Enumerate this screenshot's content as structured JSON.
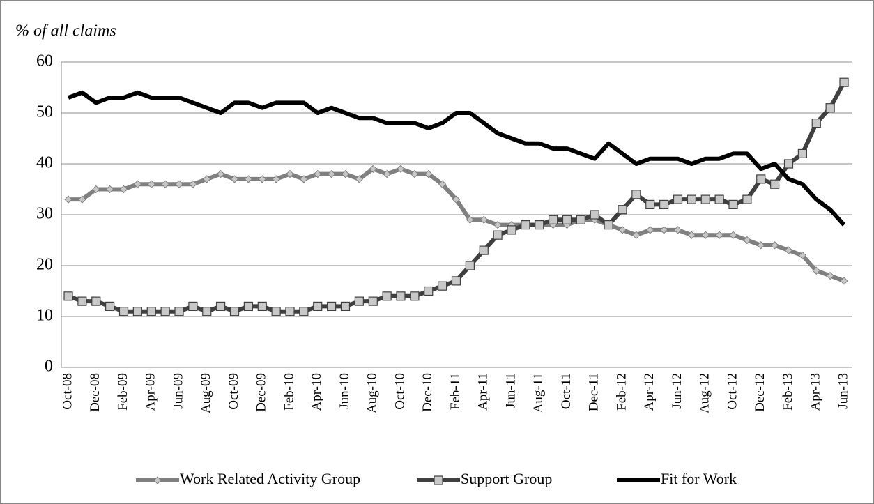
{
  "chart_data": {
    "type": "line",
    "title": "% of all claims",
    "categories": [
      "Oct-08",
      null,
      "Dec-08",
      null,
      "Feb-09",
      null,
      "Apr-09",
      null,
      "Jun-09",
      null,
      "Aug-09",
      null,
      "Oct-09",
      null,
      "Dec-09",
      null,
      "Feb-10",
      null,
      "Apr-10",
      null,
      "Jun-10",
      null,
      "Aug-10",
      null,
      "Oct-10",
      null,
      "Dec-10",
      null,
      "Feb-11",
      null,
      "Apr-11",
      null,
      "Jun-11",
      null,
      "Aug-11",
      null,
      "Oct-11",
      null,
      "Dec-11",
      null,
      "Feb-12",
      null,
      "Apr-12",
      null,
      "Jun-12",
      null,
      "Aug-12",
      null,
      "Oct-12",
      null,
      "Dec-12",
      null,
      "Feb-13",
      null,
      "Apr-13",
      null,
      "Jun-13"
    ],
    "series": [
      {
        "name": "Work Related Activity Group",
        "color": "#808080",
        "marker": "diamond",
        "values": [
          33,
          33,
          35,
          35,
          35,
          36,
          36,
          36,
          36,
          36,
          37,
          38,
          37,
          37,
          37,
          37,
          38,
          37,
          38,
          38,
          38,
          37,
          39,
          38,
          39,
          38,
          38,
          36,
          33,
          29,
          29,
          28,
          28,
          28,
          28,
          28,
          28,
          29,
          29,
          28,
          27,
          26,
          27,
          27,
          27,
          26,
          26,
          26,
          26,
          25,
          24,
          24,
          23,
          22,
          19,
          18,
          17
        ]
      },
      {
        "name": "Support Group",
        "color": "#404040",
        "marker": "square",
        "values": [
          14,
          13,
          13,
          12,
          11,
          11,
          11,
          11,
          11,
          12,
          11,
          12,
          11,
          12,
          12,
          11,
          11,
          11,
          12,
          12,
          12,
          13,
          13,
          14,
          14,
          14,
          15,
          16,
          17,
          20,
          23,
          26,
          27,
          28,
          28,
          29,
          29,
          29,
          30,
          28,
          31,
          34,
          32,
          32,
          33,
          33,
          33,
          33,
          32,
          33,
          37,
          36,
          40,
          42,
          48,
          51,
          56
        ]
      },
      {
        "name": "Fit for Work",
        "color": "#000000",
        "marker": "none",
        "values": [
          53,
          54,
          52,
          53,
          53,
          54,
          53,
          53,
          53,
          52,
          51,
          50,
          52,
          52,
          51,
          52,
          52,
          52,
          50,
          51,
          50,
          49,
          49,
          48,
          48,
          48,
          47,
          48,
          50,
          50,
          48,
          46,
          45,
          44,
          44,
          43,
          43,
          42,
          41,
          44,
          42,
          40,
          41,
          41,
          41,
          40,
          41,
          41,
          42,
          42,
          39,
          40,
          37,
          36,
          33,
          31,
          28
        ]
      }
    ],
    "ylim": [
      0,
      60
    ],
    "yticks": [
      0,
      10,
      20,
      30,
      40,
      50,
      60
    ],
    "grid": true,
    "legend": "bottom"
  }
}
